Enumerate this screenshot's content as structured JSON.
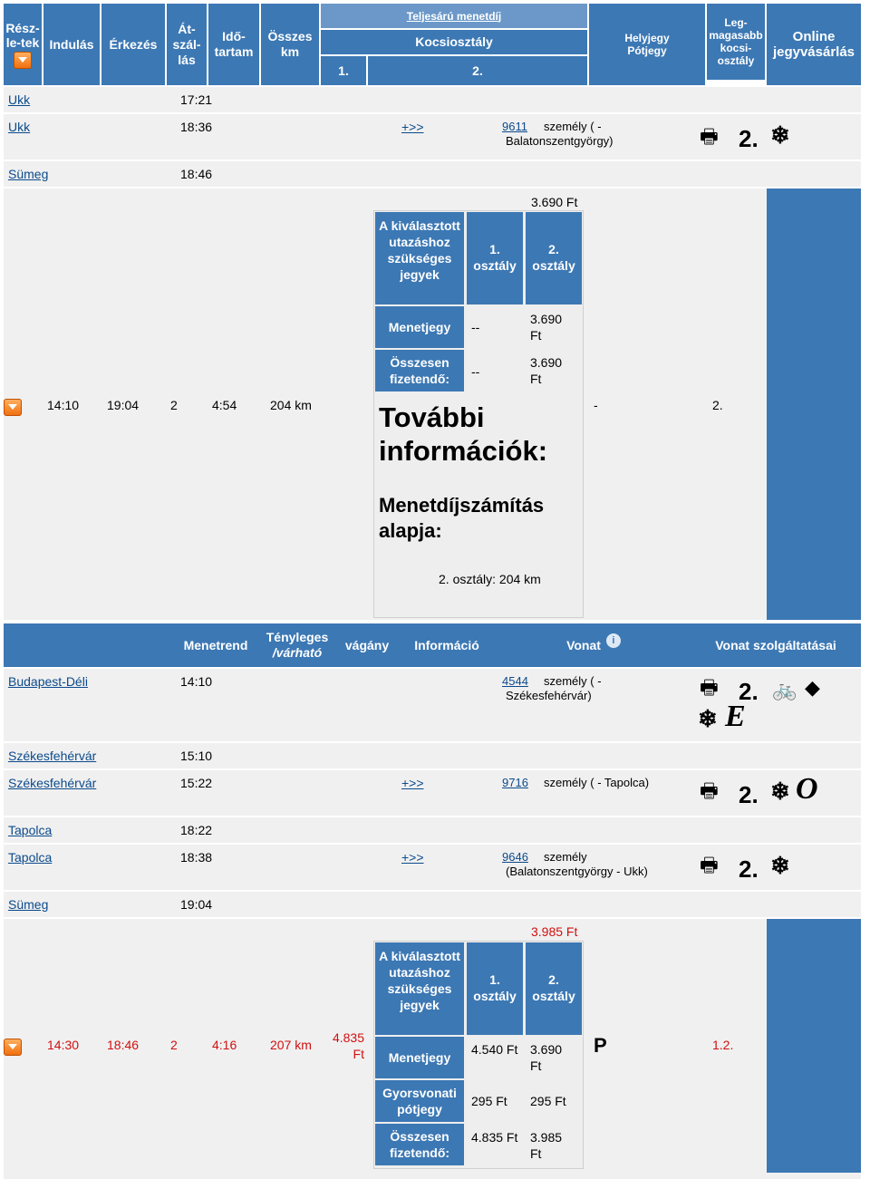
{
  "header": {
    "details": "Rész-le-tek",
    "departure": "Indulás",
    "arrival": "Érkezés",
    "transfers": "Át-szál-lás",
    "duration": "Idő-tartam",
    "total_km": "Összes km",
    "full_fare": "Teljesárú menetdíj",
    "car_class": "Kocsiosztály",
    "class1": "1.",
    "class2": "2.",
    "seat_ticket": "Helyjegy Pótjegy",
    "highest_class": "Leg-magasabb kocsi-osztály",
    "online": "Online jegyvásárlás"
  },
  "trip1_stops": [
    {
      "station": "Ukk",
      "time": "17:21",
      "more": "",
      "train_no": "",
      "train_desc": ""
    },
    {
      "station": "Ukk",
      "time": "18:36",
      "more": "+>>",
      "train_no": "9611",
      "train_desc": "személy ( -",
      "train_desc2": "Balatonszentgyörgy)"
    },
    {
      "station": "Sümeg",
      "time": "18:46",
      "more": "",
      "train_no": "",
      "train_desc": ""
    }
  ],
  "trip2": {
    "dep": "14:10",
    "arr": "19:04",
    "transfers": "2",
    "duration": "4:54",
    "km": "204 km",
    "fare_top": "3.690 Ft",
    "ticket_hdr": "A kiválasztott utazáshoz szükséges jegyek",
    "c1": "1. osztály",
    "c2": "2. osztály",
    "row1_label": "Menetjegy",
    "row1_c1": "--",
    "row1_c2": "3.690 Ft",
    "row2_label": "Összesen fizetendő:",
    "row2_c1": "--",
    "row2_c2": "3.690 Ft",
    "more_info": "További információk:",
    "basis": "Menetdíjszámítás alapja:",
    "basis_val": "2. osztály: 204 km",
    "seat": "-",
    "highest": "2."
  },
  "detail_header": {
    "timetable": "Menetrend",
    "actual": "Tényleges",
    "expected": "/várható",
    "platform": "vágány",
    "info": "Információ",
    "train": "Vonat",
    "services": "Vonat szolgáltatásai"
  },
  "trip2_stops": [
    {
      "station": "Budapest-Déli",
      "time": "14:10",
      "more": "",
      "train_no": "4544",
      "train_desc": "személy ( -",
      "train_desc2": "Székesfehérvár)"
    },
    {
      "station": "Székesfehérvár",
      "time": "15:10",
      "more": "",
      "train_no": "",
      "train_desc": ""
    },
    {
      "station": "Székesfehérvár",
      "time": "15:22",
      "more": "+>>",
      "train_no": "9716",
      "train_desc": "személy ( - Tapolca)"
    },
    {
      "station": "Tapolca",
      "time": "18:22",
      "more": "",
      "train_no": "",
      "train_desc": ""
    },
    {
      "station": "Tapolca",
      "time": "18:38",
      "more": "+>>",
      "train_no": "9646",
      "train_desc": "személy",
      "train_desc2": "(Balatonszentgyörgy - Ukk)"
    },
    {
      "station": "Sümeg",
      "time": "19:04",
      "more": "",
      "train_no": "",
      "train_desc": ""
    }
  ],
  "trip3": {
    "dep": "14:30",
    "arr": "18:46",
    "transfers": "2",
    "duration": "4:16",
    "km": "207 km",
    "seat_fee": "4.835 Ft",
    "fare_top": "3.985 Ft",
    "ticket_hdr": "A kiválasztott utazáshoz szükséges jegyek",
    "c1": "1. osztály",
    "c2": "2. osztály",
    "row1_label": "Menetjegy",
    "row1_c1": "4.540 Ft",
    "row1_c2": "3.690 Ft",
    "row2_label": "Gyorsvonati pótjegy",
    "row2_c1": "295 Ft",
    "row2_c2": "295 Ft",
    "row3_label": "Összesen fizetendő:",
    "row3_c1": "4.835 Ft",
    "row3_c2": "3.985 Ft",
    "seat": "P",
    "highest": "1.2."
  },
  "service_icons": [
    "printer-icon",
    "second-class-icon",
    "snowflake-icon",
    "bicycle-icon",
    "diamond-icon",
    "e-icon",
    "o-icon",
    "info-icon"
  ]
}
